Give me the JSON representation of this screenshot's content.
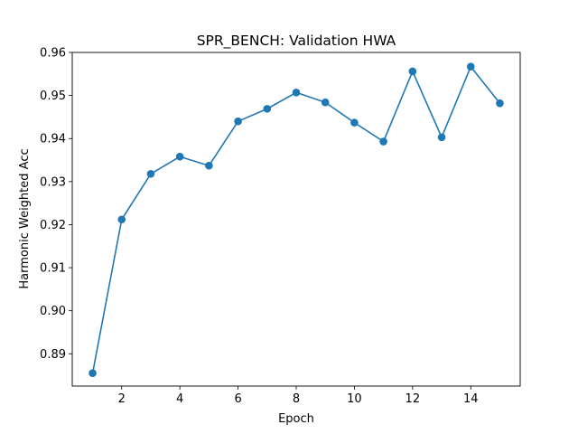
{
  "chart_data": {
    "type": "line",
    "title": "SPR_BENCH: Validation HWA",
    "xlabel": "Epoch",
    "ylabel": "Harmonic Weighted Acc",
    "xlim": [
      0.3,
      15.7
    ],
    "ylim": [
      0.8825,
      0.96
    ],
    "xticks": [
      2,
      4,
      6,
      8,
      10,
      12,
      14
    ],
    "yticks": [
      0.89,
      0.9,
      0.91,
      0.92,
      0.93,
      0.94,
      0.95,
      0.96
    ],
    "ytick_labels": [
      "0.89",
      "0.90",
      "0.91",
      "0.92",
      "0.93",
      "0.94",
      "0.95",
      "0.96"
    ],
    "grid": false,
    "series": [
      {
        "color": "#1f77b4",
        "marker": "circle",
        "x": [
          1,
          2,
          3,
          4,
          5,
          6,
          7,
          8,
          9,
          10,
          11,
          12,
          13,
          14,
          15
        ],
        "y": [
          0.8855,
          0.9212,
          0.9318,
          0.9358,
          0.9337,
          0.944,
          0.9469,
          0.9507,
          0.9484,
          0.9437,
          0.9393,
          0.9556,
          0.9403,
          0.9567,
          0.9482
        ]
      }
    ]
  }
}
